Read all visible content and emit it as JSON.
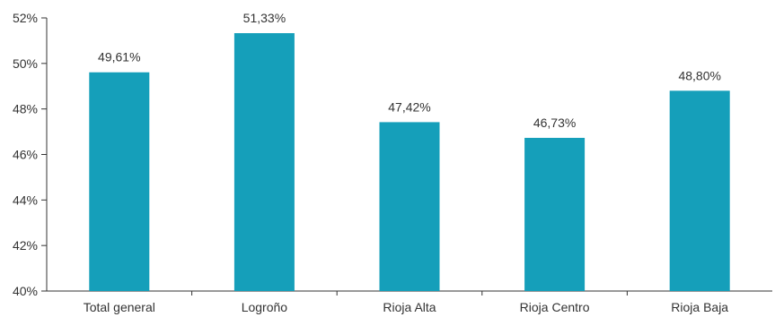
{
  "chart_data": {
    "type": "bar",
    "categories": [
      "Total general",
      "Logroño",
      "Rioja Alta",
      "Rioja Centro",
      "Rioja Baja"
    ],
    "values": [
      49.61,
      51.33,
      47.42,
      46.73,
      48.8
    ],
    "data_labels": [
      "49,61%",
      "51,33%",
      "47,42%",
      "46,73%",
      "48,80%"
    ],
    "yticks": [
      40,
      42,
      44,
      46,
      48,
      50,
      52
    ],
    "ytick_labels": [
      "40%",
      "42%",
      "44%",
      "46%",
      "48%",
      "50%",
      "52%"
    ],
    "ylim": [
      40,
      52
    ],
    "title": "",
    "xlabel": "",
    "ylabel": "",
    "grid": false,
    "legend": "none",
    "colors": {
      "bar": "#159fba",
      "axis": "#333333",
      "text": "#333333"
    }
  }
}
